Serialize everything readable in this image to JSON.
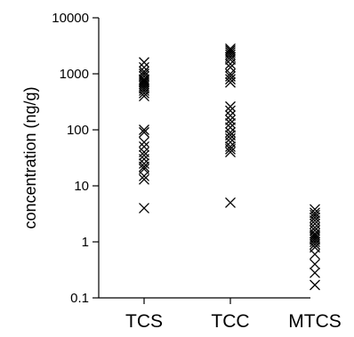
{
  "chart_data": {
    "type": "scatter",
    "title": "",
    "xlabel": "",
    "ylabel": "concentration (ng/g)",
    "yscale": "log",
    "ylim": [
      0.1,
      10000
    ],
    "yticks": [
      0.1,
      1,
      10,
      100,
      1000,
      10000
    ],
    "ytick_labels": [
      "0.1",
      "1",
      "10",
      "100",
      "1000",
      "10000"
    ],
    "categories": [
      "TCS",
      "TCC",
      "MTCS"
    ],
    "marker": "x",
    "grid": false,
    "series": [
      {
        "category": "TCS",
        "values": [
          1600,
          1300,
          1100,
          1000,
          900,
          800,
          750,
          700,
          650,
          600,
          550,
          500,
          450,
          400,
          100,
          90,
          60,
          50,
          40,
          35,
          30,
          25,
          22,
          20,
          15,
          13,
          4
        ]
      },
      {
        "category": "TCC",
        "values": [
          2800,
          2600,
          2400,
          2200,
          2000,
          1800,
          1500,
          1300,
          1000,
          900,
          800,
          700,
          260,
          220,
          180,
          150,
          130,
          110,
          90,
          80,
          70,
          60,
          50,
          45,
          40,
          5
        ]
      },
      {
        "category": "MTCS",
        "values": [
          3.8,
          3.3,
          3.0,
          2.7,
          2.4,
          2.1,
          1.8,
          1.6,
          1.4,
          1.3,
          1.2,
          1.1,
          1.0,
          0.9,
          0.8,
          0.6,
          0.4,
          0.28,
          0.17
        ]
      }
    ]
  }
}
